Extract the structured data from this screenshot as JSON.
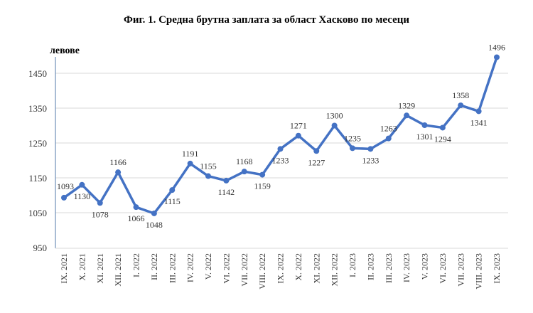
{
  "chart_data": {
    "type": "line",
    "title": "Фиг. 1. Средна брутна заплата за област Хасково по месеци",
    "ylabel": "левове",
    "xlabel": "",
    "ylim": [
      950,
      1500
    ],
    "yticks": [
      950,
      1050,
      1150,
      1250,
      1350,
      1450
    ],
    "grid": true,
    "line_color": "#4472C4",
    "categories": [
      "IX. 2021",
      "X. 2021",
      "XI. 2021",
      "XII. 2021",
      "I. 2022",
      "II. 2022",
      "III. 2022",
      "IV. 2022",
      "V. 2022",
      "VI. 2022",
      "VII. 2022",
      "VIII. 2022",
      "IX. 2022",
      "X. 2022",
      "XI. 2022",
      "XII. 2022",
      "I. 2023",
      "II. 2023",
      "III. 2023",
      "IV. 2023",
      "V. 2023",
      "VI. 2023",
      "VII. 2023",
      "VIII. 2023",
      "IX. 2023"
    ],
    "values": [
      1093,
      1130,
      1078,
      1166,
      1066,
      1048,
      1115,
      1191,
      1155,
      1142,
      1168,
      1159,
      1233,
      1271,
      1227,
      1300,
      1235,
      1233,
      1263,
      1329,
      1301,
      1294,
      1358,
      1341,
      1496
    ]
  }
}
